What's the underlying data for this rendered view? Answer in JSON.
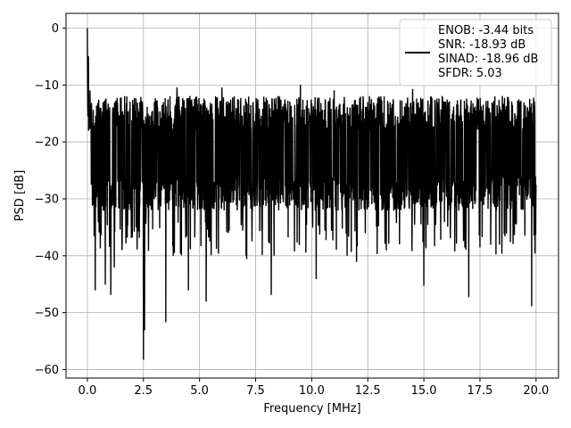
{
  "chart_data": {
    "type": "line",
    "title": "",
    "xlabel": "Frequency [MHz]",
    "ylabel": "PSD [dB]",
    "xlim": [
      -0.95,
      21.0
    ],
    "ylim": [
      -61.5,
      2.6
    ],
    "xticks": [
      0.0,
      2.5,
      5.0,
      7.5,
      10.0,
      12.5,
      15.0,
      17.5,
      20.0
    ],
    "xtick_labels": [
      "0.0",
      "2.5",
      "5.0",
      "7.5",
      "10.0",
      "12.5",
      "15.0",
      "17.5",
      "20.0"
    ],
    "yticks": [
      0,
      -10,
      -20,
      -30,
      -40,
      -50,
      -60
    ],
    "ytick_labels": [
      "0",
      "−10",
      "−20",
      "−30",
      "−40",
      "−50",
      "−60"
    ],
    "grid": true,
    "legend_position": "top-right",
    "line_color": "#000000",
    "legend": [
      "ENOB: -3.44 bits",
      "SNR: -18.93 dB",
      "SINAD: -18.96 dB",
      "SFDR: 5.03"
    ],
    "series": [
      {
        "x_range": [
          0.0,
          20.0
        ],
        "points": 2048,
        "band_upper_db": -12,
        "band_lower_db": -32,
        "notable_points": [
          {
            "x": 0.0,
            "y": 0.0
          },
          {
            "x": 0.05,
            "y": -5.0
          },
          {
            "x": 0.3,
            "y": -36.5
          },
          {
            "x": 0.35,
            "y": -46.0
          },
          {
            "x": 0.8,
            "y": -45.0
          },
          {
            "x": 1.05,
            "y": -46.8
          },
          {
            "x": 1.2,
            "y": -42.0
          },
          {
            "x": 2.5,
            "y": -58.2
          },
          {
            "x": 2.55,
            "y": -53.0
          },
          {
            "x": 3.5,
            "y": -51.6
          },
          {
            "x": 4.5,
            "y": -46.0
          },
          {
            "x": 5.3,
            "y": -48.0
          },
          {
            "x": 7.1,
            "y": -40.5
          },
          {
            "x": 8.2,
            "y": -46.8
          },
          {
            "x": 10.2,
            "y": -44.0
          },
          {
            "x": 12.0,
            "y": -41.0
          },
          {
            "x": 15.0,
            "y": -45.2
          },
          {
            "x": 17.0,
            "y": -47.2
          },
          {
            "x": 19.8,
            "y": -48.8
          },
          {
            "x": 4.0,
            "y": -10.5
          },
          {
            "x": 6.0,
            "y": -10.5
          },
          {
            "x": 9.5,
            "y": -10.0
          },
          {
            "x": 11.0,
            "y": -11.0
          },
          {
            "x": 14.5,
            "y": -10.8
          },
          {
            "x": 18.5,
            "y": -12.0
          }
        ]
      }
    ]
  }
}
